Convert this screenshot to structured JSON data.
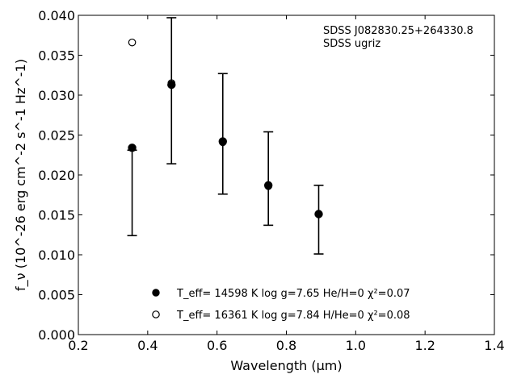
{
  "chart_data": {
    "type": "scatter",
    "annotation": [
      "SDSS J082830.25+264330.8",
      "SDSS ugriz"
    ],
    "xlabel": "Wavelength (μm)",
    "ylabel": "f_ν (10^-26 erg cm^-2 s^-1 Hz^-1)",
    "xlim": [
      0.2,
      1.4
    ],
    "ylim": [
      0.0,
      0.04
    ],
    "x_ticks": [
      0.2,
      0.4,
      0.6,
      0.8,
      1.0,
      1.2,
      1.4
    ],
    "x_tick_labels": [
      "0.2",
      "0.4",
      "0.6",
      "0.8",
      "1.0",
      "1.2",
      "1.4"
    ],
    "y_ticks": [
      0.0,
      0.005,
      0.01,
      0.015,
      0.02,
      0.025,
      0.03,
      0.035,
      0.04
    ],
    "y_tick_labels": [
      "0.000",
      "0.005",
      "0.010",
      "0.015",
      "0.020",
      "0.025",
      "0.030",
      "0.035",
      "0.040"
    ],
    "grid": false,
    "legend_position": "lower-center",
    "observed": {
      "x": [
        0.3551,
        0.4686,
        0.6166,
        0.748,
        0.8932
      ],
      "y": [
        0.0233,
        0.0313,
        0.0241,
        0.0186,
        0.0151
      ],
      "yerr_low": [
        0.0124,
        0.0214,
        0.0176,
        0.0137,
        0.0101
      ],
      "yerr_high": [
        0.0231,
        0.0397,
        0.0327,
        0.0254,
        0.0187
      ]
    },
    "series": [
      {
        "name": "T_eff= 14598 K  log g=7.65  He/H=0  χ²=0.07",
        "marker": "filled-circle",
        "x": [
          0.3551,
          0.4686,
          0.6166,
          0.748,
          0.8932
        ],
        "y": [
          0.0234,
          0.0313,
          0.0242,
          0.0187,
          0.0151
        ]
      },
      {
        "name": "T_eff= 16361 K  log g=7.84  H/He=0  χ²=0.08",
        "marker": "open-circle",
        "x": [
          0.3551,
          0.4686,
          0.6166,
          0.748,
          0.8932
        ],
        "y": [
          0.0366,
          0.0315,
          0.0241,
          0.0186,
          0.0151
        ]
      }
    ],
    "colors": {
      "marker": "#000000",
      "axis": "#000000"
    }
  }
}
